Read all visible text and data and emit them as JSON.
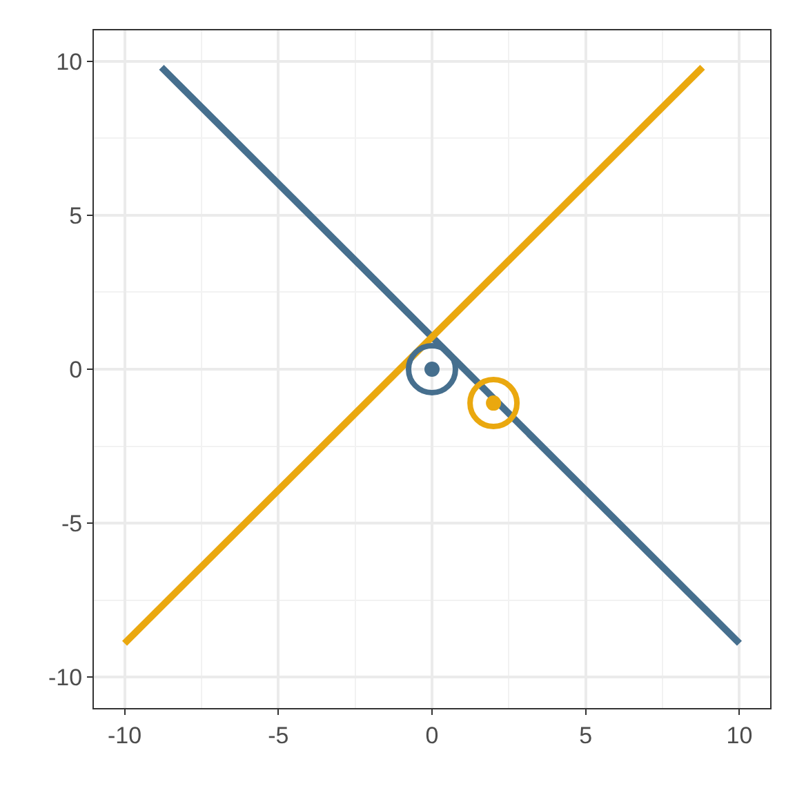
{
  "chart_data": {
    "type": "line",
    "xlim": [
      -11,
      11
    ],
    "ylim": [
      -11,
      11
    ],
    "xticks": [
      -10,
      -5,
      0,
      5,
      10
    ],
    "yticks": [
      -10,
      -5,
      0,
      5,
      10
    ],
    "grid": true,
    "series": [
      {
        "color": "#466f8e",
        "x": [
          -8.8,
          10
        ],
        "values": [
          9.8,
          -8.9
        ],
        "marker": "none"
      },
      {
        "color": "#eaa80f",
        "x": [
          -10,
          8.8
        ],
        "values": [
          -8.9,
          9.8
        ],
        "marker": "none"
      },
      {
        "type": "scatter",
        "color": "#466f8e",
        "x": [
          0
        ],
        "values": [
          0
        ],
        "marker": "circle"
      },
      {
        "type": "scatter",
        "color": "#eaa80f",
        "x": [
          2
        ],
        "values": [
          -1.1
        ],
        "marker": "circle"
      }
    ]
  }
}
